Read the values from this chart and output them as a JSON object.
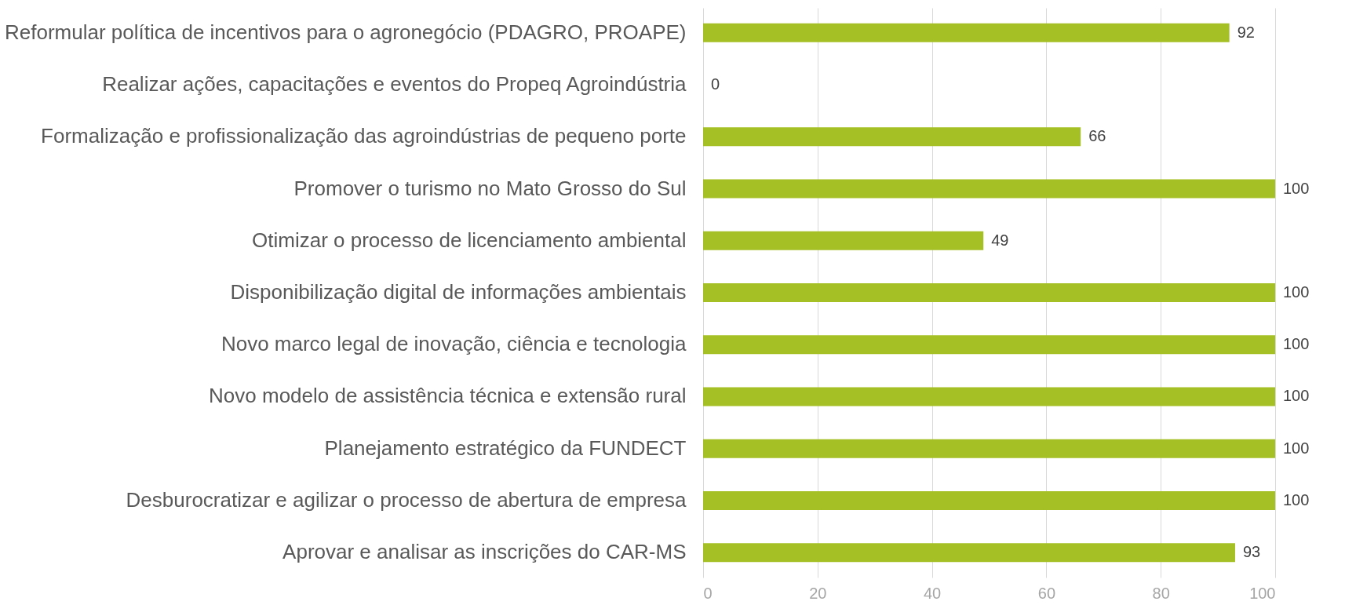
{
  "chart_data": {
    "type": "bar",
    "orientation": "horizontal",
    "categories": [
      "Reformular política de incentivos para o agronegócio (PDAGRO, PROAPE)",
      "Realizar ações, capacitações e eventos do Propeq Agroindústria",
      "Formalização e profissionalização das agroindústrias de pequeno porte",
      "Promover o turismo no Mato Grosso do Sul",
      "Otimizar o processo de licenciamento ambiental",
      "Disponibilização digital de informações ambientais",
      "Novo marco legal de inovação, ciência e tecnologia",
      "Novo modelo de assistência técnica e extensão rural",
      "Planejamento estratégico da FUNDECT",
      "Desburocratizar e agilizar o processo de abertura de empresa",
      "Aprovar e analisar as inscrições do CAR-MS"
    ],
    "values": [
      92,
      0,
      66,
      100,
      49,
      100,
      100,
      100,
      100,
      100,
      93
    ],
    "color": "#a5c025",
    "xlim": [
      0,
      100
    ],
    "xticks": [
      0,
      20,
      40,
      60,
      80,
      100
    ],
    "grid": "x",
    "data_labels": true
  }
}
